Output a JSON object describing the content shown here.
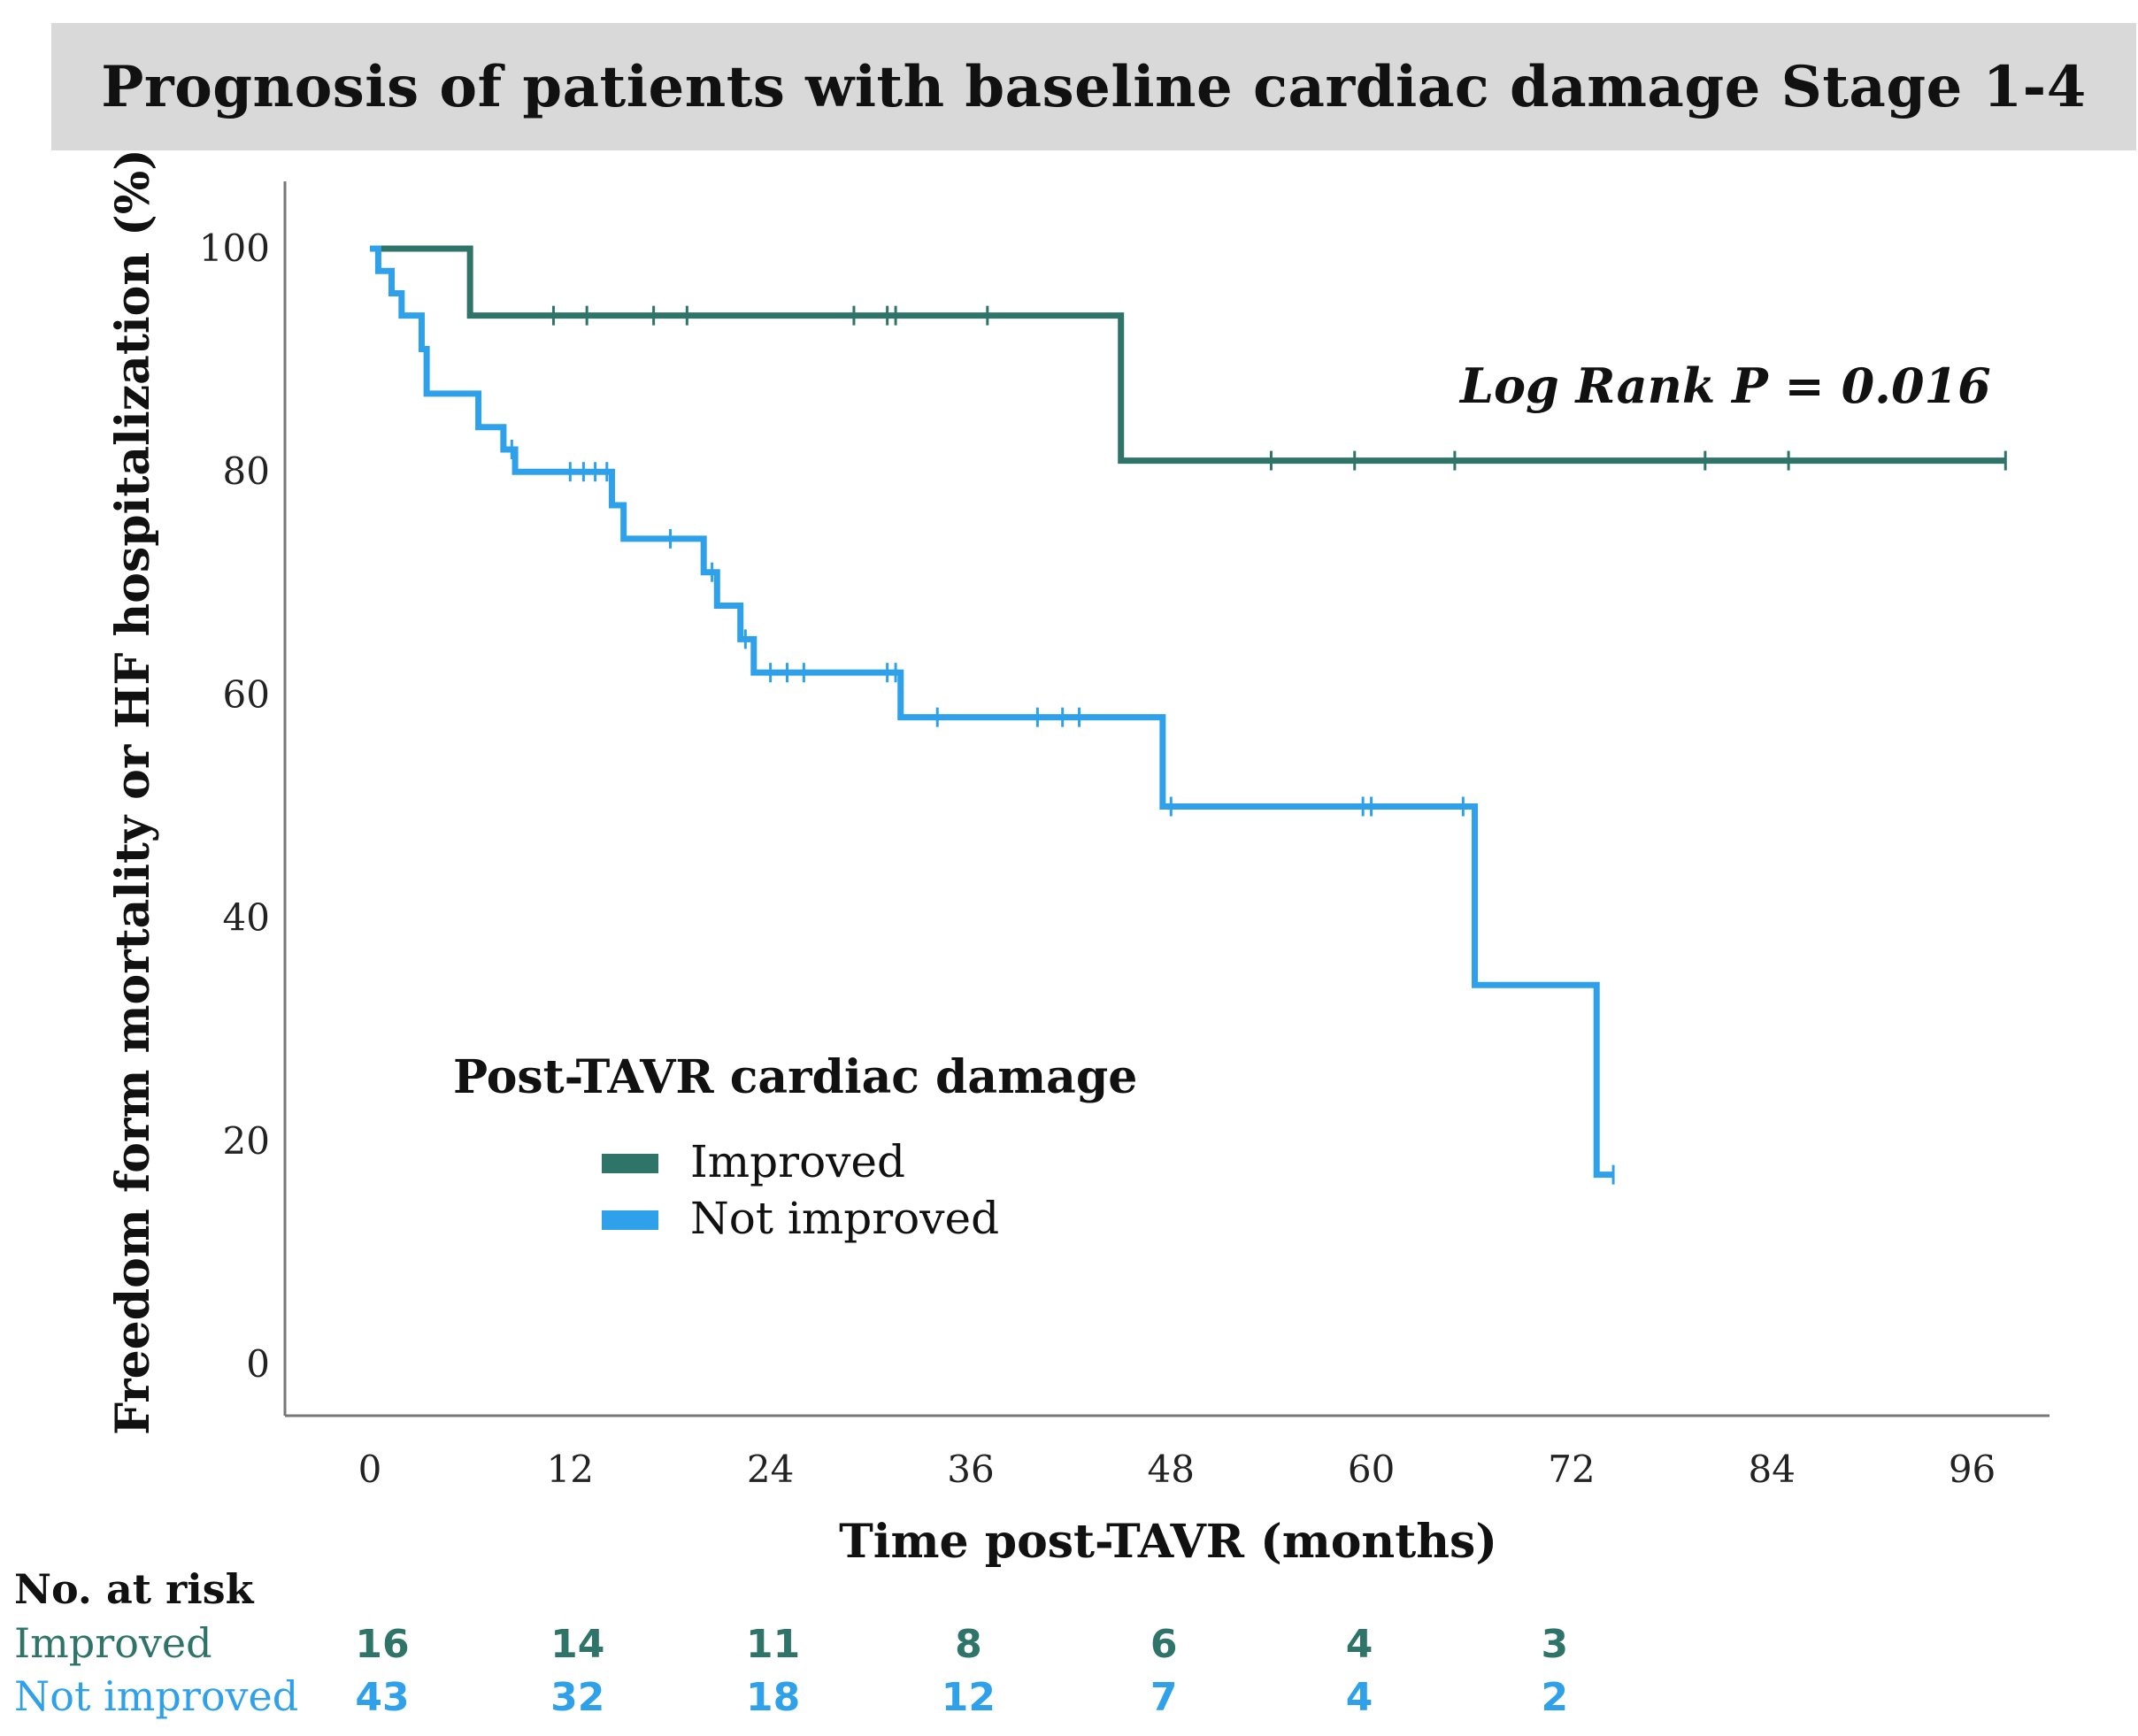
{
  "title": "Prognosis of patients with baseline cardiac damage Stage 1-4",
  "colors": {
    "improved": "#2e7468",
    "not_improved": "#2ea1ea",
    "axis": "#777777",
    "title_bg": "#d9d9d9"
  },
  "chart_data": {
    "type": "line",
    "subtype": "kaplan-meier step",
    "xlabel": "Time post-TAVR (months)",
    "ylabel": "Freedom form mortality or HF hospitalization (%)",
    "xlim": [
      -5,
      101
    ],
    "ylim": [
      -4,
      106
    ],
    "xticks": [
      0,
      12,
      24,
      36,
      48,
      60,
      72,
      84,
      96
    ],
    "yticks": [
      0,
      20,
      40,
      60,
      80,
      100
    ],
    "annotation": "Log Rank P = 0.016",
    "legend": {
      "title": "Post-TAVR cardiac damage",
      "entries": [
        "Improved",
        "Not improved"
      ]
    },
    "series": [
      {
        "name": "Improved",
        "steps": [
          [
            0,
            100
          ],
          [
            6,
            94
          ],
          [
            45,
            81
          ],
          [
            98,
            81
          ]
        ],
        "censor": [
          11,
          13,
          17,
          19,
          29,
          31,
          31.5,
          37,
          54,
          59,
          65,
          80,
          85,
          98
        ]
      },
      {
        "name": "Not improved",
        "steps": [
          [
            0,
            100
          ],
          [
            0.5,
            98
          ],
          [
            1.3,
            96
          ],
          [
            1.9,
            94
          ],
          [
            3.1,
            91
          ],
          [
            3.4,
            87
          ],
          [
            6.5,
            84
          ],
          [
            8,
            82
          ],
          [
            8.7,
            80
          ],
          [
            14.5,
            77
          ],
          [
            15.2,
            74
          ],
          [
            20,
            71
          ],
          [
            20.8,
            68
          ],
          [
            22.2,
            65
          ],
          [
            23,
            62
          ],
          [
            31.8,
            58
          ],
          [
            47.5,
            50
          ],
          [
            66.2,
            34
          ],
          [
            73.5,
            17
          ],
          [
            74.5,
            17
          ]
        ],
        "censor": [
          8.5,
          12,
          12.8,
          13.5,
          14.2,
          18,
          20.5,
          22.5,
          24,
          25,
          26,
          31,
          31.5,
          34,
          40,
          41.5,
          42.5,
          48,
          59.5,
          60,
          65.5,
          74.5
        ]
      }
    ],
    "risk_table": {
      "heading": "No. at risk",
      "times": [
        0,
        12,
        24,
        36,
        48,
        60,
        72
      ],
      "rows": [
        {
          "name": "Improved",
          "counts": [
            16,
            14,
            11,
            8,
            6,
            4,
            3
          ]
        },
        {
          "name": "Not improved",
          "counts": [
            43,
            32,
            18,
            12,
            7,
            4,
            2
          ]
        }
      ]
    }
  }
}
